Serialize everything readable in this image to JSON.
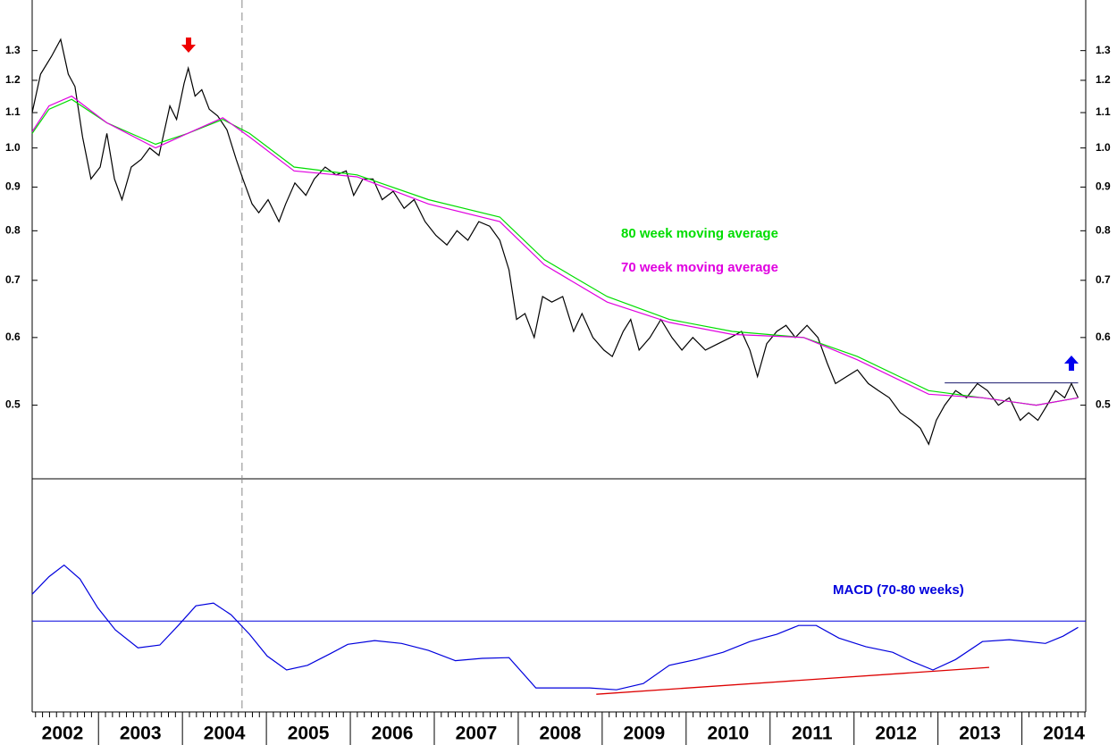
{
  "chart_data": [
    {
      "type": "line",
      "log_scale": true,
      "xlim": [
        2002.21,
        2014.76
      ],
      "ylim": [
        0.41,
        1.49
      ],
      "yticks": [
        1.3,
        1.2,
        1.1,
        {
          "value": 1,
          "label": "1.0"
        },
        0.9,
        0.8,
        0.7,
        0.6,
        0.5
      ],
      "annotations": [
        {
          "text": "80 week moving average",
          "color": "#00dd00"
        },
        {
          "text": "70 week moving average",
          "color": "#e000e0"
        }
      ],
      "vline": 2004.71,
      "resistance": {
        "x": [
          2013.08,
          2014.67
        ],
        "value": 0.531,
        "color": "#1a1a6e"
      },
      "series": [
        {
          "name": "Price",
          "color": "#000000",
          "x": [
            2002.21,
            2002.31,
            2002.44,
            2002.55,
            2002.64,
            2002.72,
            2002.81,
            2002.91,
            2003.02,
            2003.1,
            2003.19,
            2003.28,
            2003.39,
            2003.51,
            2003.61,
            2003.72,
            2003.85,
            2003.93,
            2004.02,
            2004.07,
            2004.15,
            2004.23,
            2004.32,
            2004.42,
            2004.53,
            2004.64,
            2004.72,
            2004.83,
            2004.91,
            2005.02,
            2005.15,
            2005.23,
            2005.34,
            2005.47,
            2005.57,
            2005.7,
            2005.83,
            2005.95,
            2006.04,
            2006.15,
            2006.27,
            2006.38,
            2006.51,
            2006.64,
            2006.76,
            2006.89,
            2007.02,
            2007.15,
            2007.27,
            2007.4,
            2007.53,
            2007.66,
            2007.78,
            2007.89,
            2007.98,
            2008.08,
            2008.19,
            2008.29,
            2008.4,
            2008.53,
            2008.66,
            2008.76,
            2008.89,
            2009.02,
            2009.12,
            2009.25,
            2009.34,
            2009.44,
            2009.57,
            2009.7,
            2009.83,
            2009.95,
            2010.08,
            2010.23,
            2010.38,
            2010.53,
            2010.66,
            2010.76,
            2010.85,
            2010.96,
            2011.08,
            2011.19,
            2011.3,
            2011.44,
            2011.57,
            2011.68,
            2011.78,
            2011.91,
            2012.04,
            2012.17,
            2012.29,
            2012.42,
            2012.55,
            2012.68,
            2012.79,
            2012.89,
            2012.98,
            2013.08,
            2013.21,
            2013.34,
            2013.47,
            2013.59,
            2013.72,
            2013.85,
            2013.98,
            2014.08,
            2014.19,
            2014.3,
            2014.4,
            2014.51,
            2014.59,
            2014.67
          ],
          "values": [
            1.1,
            1.22,
            1.28,
            1.34,
            1.22,
            1.18,
            1.03,
            0.92,
            0.95,
            1.04,
            0.92,
            0.87,
            0.95,
            0.97,
            1.0,
            0.98,
            1.12,
            1.08,
            1.19,
            1.24,
            1.15,
            1.17,
            1.11,
            1.09,
            1.05,
            0.97,
            0.92,
            0.86,
            0.84,
            0.87,
            0.82,
            0.86,
            0.91,
            0.88,
            0.92,
            0.95,
            0.93,
            0.94,
            0.88,
            0.92,
            0.92,
            0.87,
            0.89,
            0.85,
            0.87,
            0.82,
            0.79,
            0.77,
            0.8,
            0.78,
            0.82,
            0.81,
            0.78,
            0.72,
            0.63,
            0.64,
            0.6,
            0.67,
            0.66,
            0.67,
            0.61,
            0.64,
            0.6,
            0.58,
            0.57,
            0.61,
            0.63,
            0.58,
            0.6,
            0.63,
            0.6,
            0.58,
            0.6,
            0.58,
            0.59,
            0.6,
            0.61,
            0.58,
            0.54,
            0.59,
            0.61,
            0.62,
            0.6,
            0.62,
            0.6,
            0.56,
            0.53,
            0.54,
            0.55,
            0.53,
            0.52,
            0.51,
            0.49,
            0.48,
            0.47,
            0.45,
            0.48,
            0.5,
            0.52,
            0.51,
            0.53,
            0.52,
            0.5,
            0.51,
            0.48,
            0.49,
            0.48,
            0.5,
            0.52,
            0.51,
            0.53,
            0.51
          ]
        },
        {
          "name": "80 week moving average",
          "color": "#00dd00",
          "x": [
            2002.21,
            2002.41,
            2002.68,
            2003.1,
            2003.68,
            2004.06,
            2004.48,
            2004.8,
            2005.33,
            2006.08,
            2006.93,
            2007.78,
            2008.31,
            2009.06,
            2009.8,
            2010.55,
            2011.4,
            2012.04,
            2012.89,
            2013.53,
            2014.17,
            2014.67
          ],
          "values": [
            1.04,
            1.11,
            1.14,
            1.07,
            1.01,
            1.04,
            1.08,
            1.04,
            0.95,
            0.93,
            0.87,
            0.83,
            0.74,
            0.67,
            0.63,
            0.61,
            0.6,
            0.57,
            0.52,
            0.51,
            0.5,
            0.51
          ]
        },
        {
          "name": "70 week moving average",
          "color": "#e000e0",
          "x": [
            2002.21,
            2002.41,
            2002.68,
            2003.1,
            2003.68,
            2004.06,
            2004.48,
            2004.8,
            2005.33,
            2006.08,
            2006.93,
            2007.78,
            2008.31,
            2009.06,
            2009.8,
            2010.55,
            2011.4,
            2012.04,
            2012.89,
            2013.53,
            2014.17,
            2014.67
          ],
          "values": [
            1.045,
            1.12,
            1.15,
            1.07,
            1.0,
            1.04,
            1.085,
            1.03,
            0.94,
            0.925,
            0.86,
            0.82,
            0.73,
            0.66,
            0.625,
            0.605,
            0.6,
            0.565,
            0.515,
            0.51,
            0.5,
            0.51
          ]
        }
      ]
    },
    {
      "type": "line",
      "xlim": [
        2002.21,
        2014.76
      ],
      "ylim": [
        -39,
        61
      ],
      "xticks": [
        2002,
        2003,
        2004,
        2005,
        2006,
        2007,
        2008,
        2009,
        2010,
        2011,
        2012,
        2013,
        2014
      ],
      "zero_line": 0,
      "annotations": [
        {
          "text": "MACD (70-80 weeks)",
          "color": "#0000dd"
        }
      ],
      "trendline": {
        "x": [
          2008.93,
          2013.61
        ],
        "values": [
          -31.4,
          -19.9
        ],
        "color": "#dd0000"
      },
      "series": [
        {
          "name": "MACD (70-80 weeks)",
          "color": "#0000dd",
          "x": [
            2002.21,
            2002.41,
            2002.59,
            2002.78,
            2002.99,
            2003.2,
            2003.47,
            2003.73,
            2003.95,
            2004.16,
            2004.37,
            2004.58,
            2004.8,
            2005.01,
            2005.24,
            2005.49,
            2005.76,
            2005.97,
            2006.29,
            2006.61,
            2006.93,
            2007.25,
            2007.57,
            2007.89,
            2008.21,
            2008.53,
            2008.85,
            2009.17,
            2009.49,
            2009.8,
            2010.12,
            2010.44,
            2010.76,
            2011.08,
            2011.34,
            2011.55,
            2011.82,
            2012.14,
            2012.46,
            2012.68,
            2012.94,
            2013.21,
            2013.53,
            2013.85,
            2014.28,
            2014.49,
            2014.67
          ],
          "values": [
            11.5,
            19,
            24,
            18,
            5.7,
            -3.8,
            -11.5,
            -10.3,
            -1.9,
            6.5,
            7.7,
            2.7,
            -5.7,
            -15,
            -21,
            -19,
            -14,
            -10,
            -8.4,
            -9.6,
            -12.6,
            -17,
            -16,
            -15.7,
            -28.7,
            -28.7,
            -28.7,
            -29.5,
            -26.8,
            -19,
            -16.5,
            -13.4,
            -8.8,
            -5.7,
            -1.9,
            -1.9,
            -7.3,
            -11,
            -13.4,
            -17.2,
            -21,
            -16.5,
            -8.8,
            -8,
            -9.6,
            -6.5,
            -2.7
          ]
        }
      ]
    }
  ]
}
